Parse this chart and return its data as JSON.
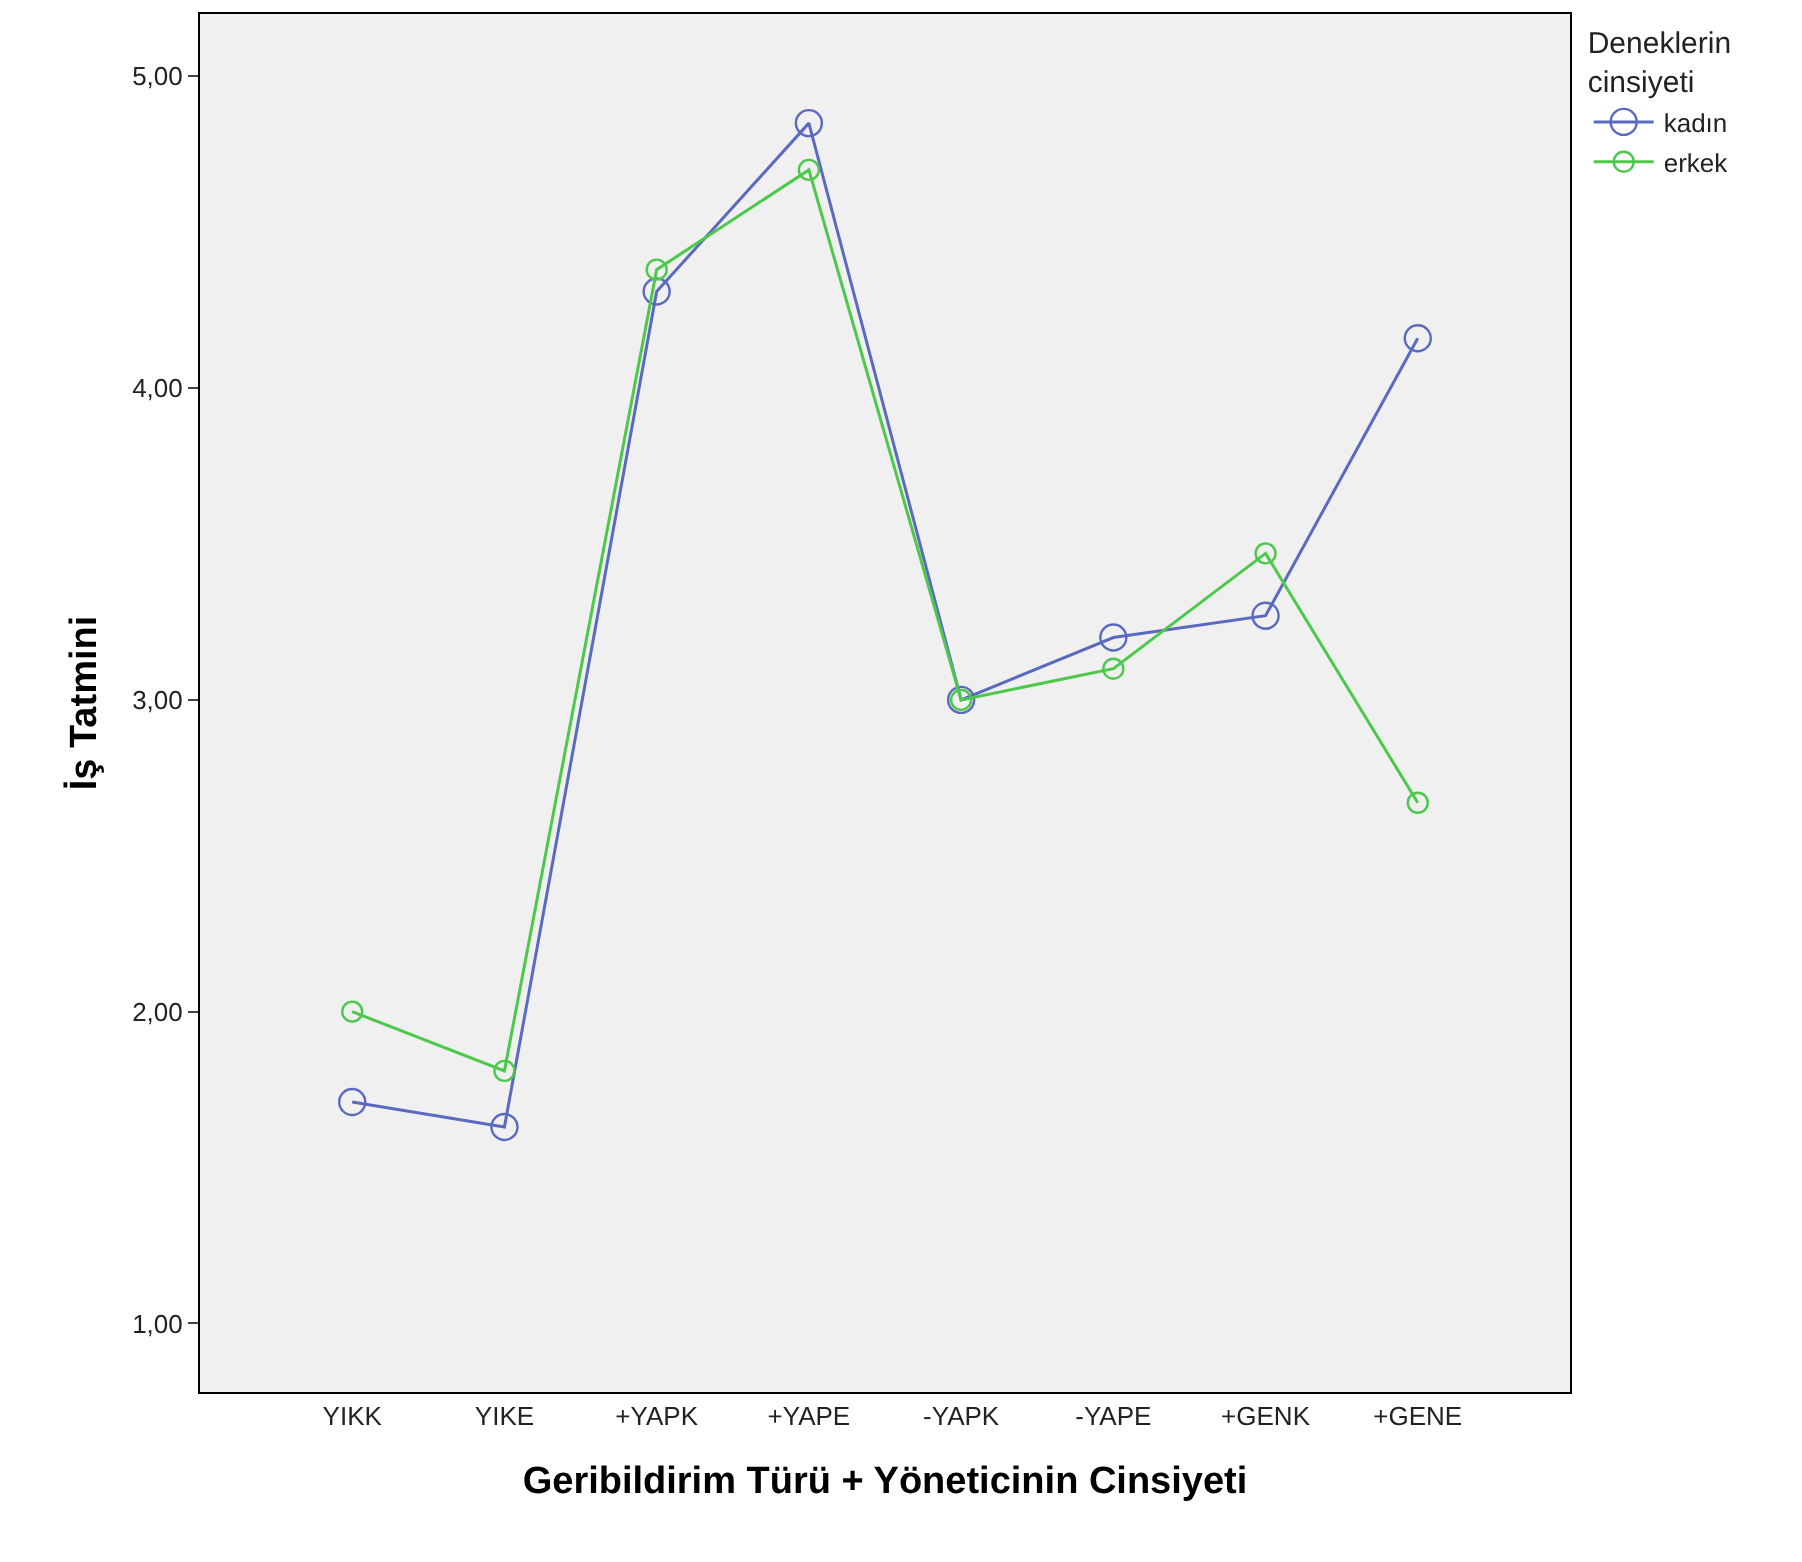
{
  "chart_data": {
    "type": "line",
    "xlabel": "Geribildirim Türü + Yöneticinin Cinsiyeti",
    "ylabel": "İş Tatmini",
    "legend_title": "Deneklerin cinsiyeti",
    "categories": [
      "YIKK",
      "YIKE",
      "+YAPK",
      "+YAPE",
      "-YAPK",
      "-YAPE",
      "+GENK",
      "+GENE"
    ],
    "series": [
      {
        "name": "kadın",
        "color": "#5a6abf",
        "values": [
          1.71,
          1.63,
          4.31,
          4.85,
          3.0,
          3.2,
          3.27,
          4.16
        ]
      },
      {
        "name": "erkek",
        "color": "#4cc94c",
        "values": [
          2.0,
          1.81,
          4.38,
          4.7,
          3.0,
          3.1,
          3.47,
          2.67
        ]
      }
    ],
    "ylim": [
      0.78,
      5.2
    ],
    "yticks": [
      {
        "value": 1,
        "label": "1,00"
      },
      {
        "value": 2,
        "label": "2,00"
      },
      {
        "value": 3,
        "label": "3,00"
      },
      {
        "value": 4,
        "label": "4,00"
      },
      {
        "value": 5,
        "label": "5,00"
      }
    ],
    "grid": false,
    "legend": "top right",
    "marker": "circle",
    "line_style": "solid"
  }
}
